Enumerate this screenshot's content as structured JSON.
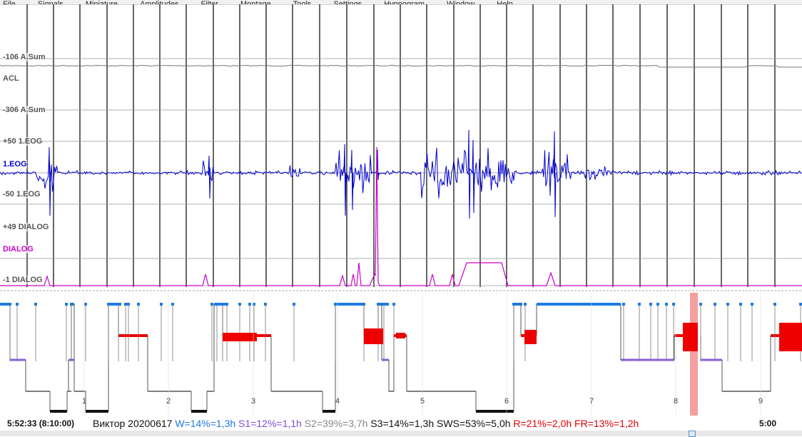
{
  "menu": [
    "File",
    "Signals",
    "Miniature",
    "Amplitudes",
    "Filter",
    "Montage",
    "Tools",
    "Settings",
    "Hypnogram",
    "Window",
    "Help"
  ],
  "channels": {
    "asum_upper": "-106 A.Sum",
    "acl": "ACL",
    "asum_lower": "-306 A.Sum",
    "eog_upper": "+50 1.EOG",
    "eog": "1.EOG",
    "eog_lower": "-50 1.EOG",
    "dialog_upper": "+49 DIALOG",
    "dialog": "DIALOG",
    "dialog_lower": "-1 DIALOG"
  },
  "colors": {
    "grid": "#000000",
    "acl": "#777777",
    "eog": "#0000cc",
    "dialog": "#cc00cc",
    "wake": "#1e7be0",
    "rem": "#ee0000",
    "s1": "#8a5de0",
    "deep": "#111111",
    "marker": "#f4a0a0"
  },
  "hours": [
    "1",
    "2",
    "3",
    "4",
    "5",
    "6",
    "7",
    "8",
    "9"
  ],
  "status": {
    "time": "5:52:33 (8:10:00)",
    "name": "Виктор 20200617",
    "w": "W=14%=1,3h",
    "s1": "S1=12%=1,1h",
    "s2": "S2=39%=3,7h",
    "s3": "S3=14%=1,3h",
    "sws": "SWS=53%=5,0h",
    "r": "R=21%=2,0h",
    "fr": "FR=13%=1,2h",
    "end": "5:00"
  }
}
